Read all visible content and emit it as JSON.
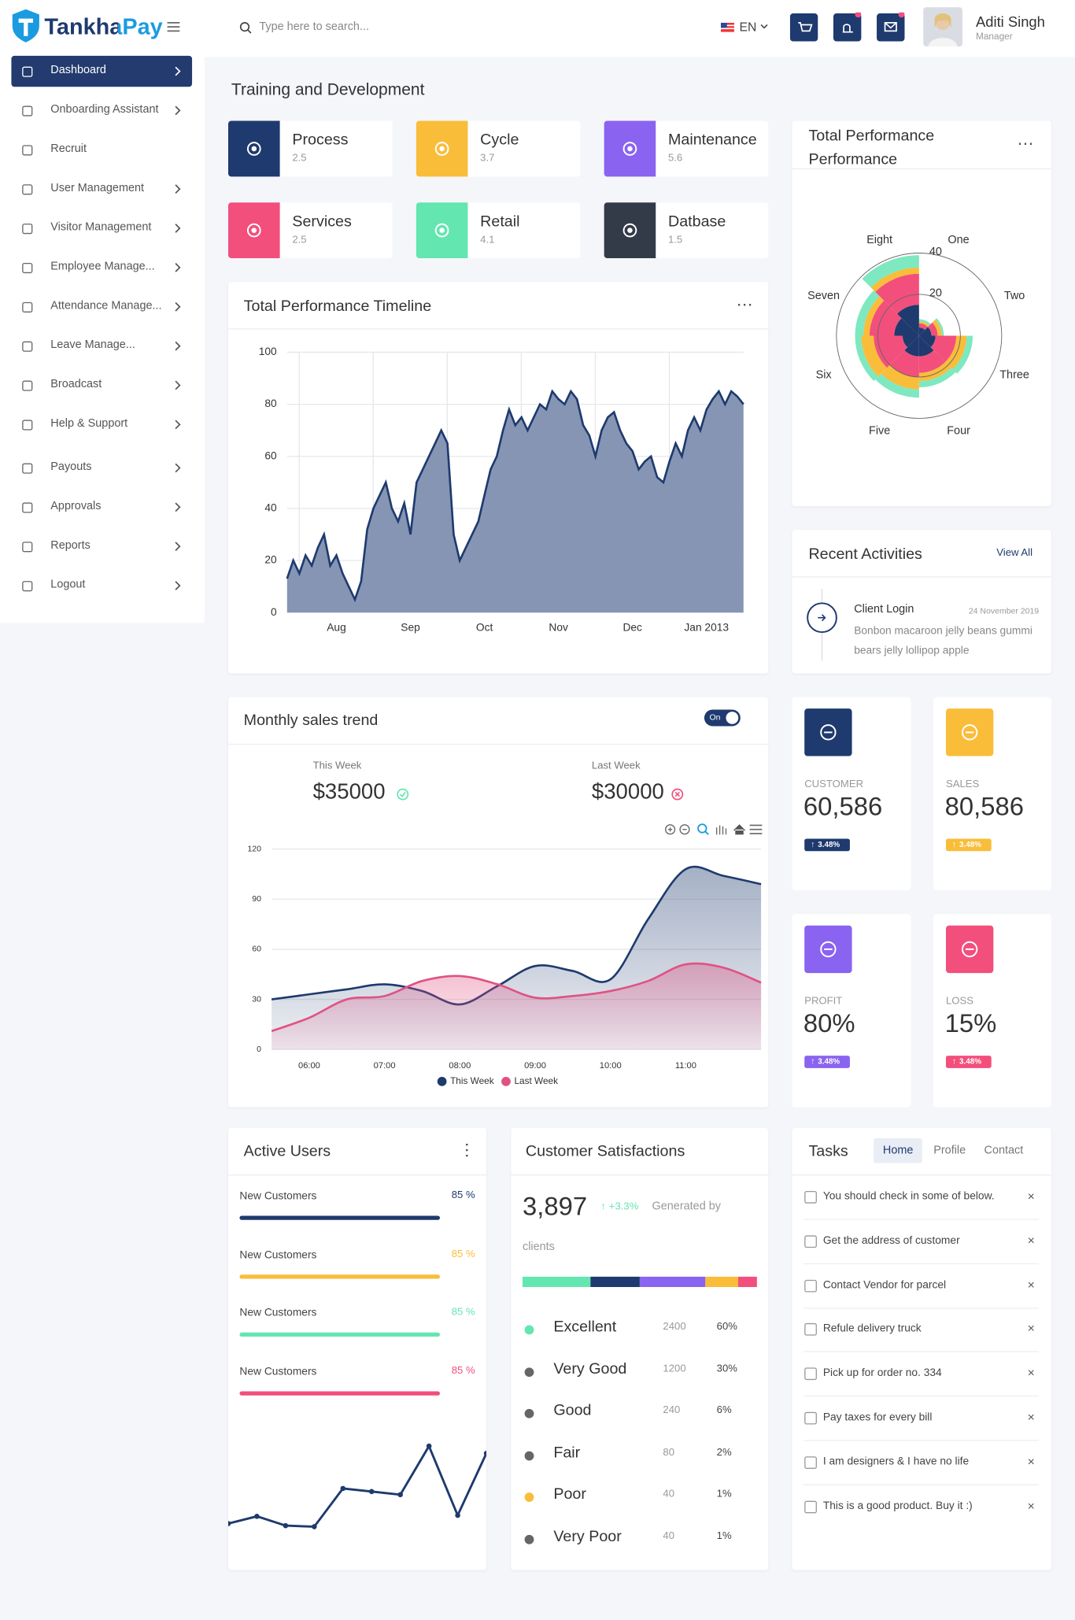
{
  "sidebar": {
    "brand": "TankhaPay",
    "menu": [
      {
        "label": "Dashboard",
        "submenu": true,
        "active": true
      },
      {
        "label": "Onboarding Assistant",
        "submenu": true,
        "active": false
      },
      {
        "label": "Recruit",
        "submenu": false,
        "active": false
      },
      {
        "label": "User Management",
        "submenu": true,
        "active": false
      },
      {
        "label": "Visitor Management",
        "submenu": true,
        "active": false
      },
      {
        "label": "Employee Manage...",
        "submenu": true,
        "active": false
      },
      {
        "label": "Attendance Manage...",
        "submenu": true,
        "active": false
      },
      {
        "label": "Leave Manage...",
        "submenu": true,
        "active": false
      },
      {
        "label": "Broadcast",
        "submenu": true,
        "active": false
      },
      {
        "label": "Help & Support",
        "submenu": true,
        "active": false
      },
      {
        "label": "Payouts",
        "submenu": true,
        "active": false
      },
      {
        "label": "Approvals",
        "submenu": true,
        "active": false
      },
      {
        "label": "Reports",
        "submenu": true,
        "active": false
      },
      {
        "label": "Logout",
        "submenu": true,
        "active": false
      }
    ]
  },
  "topbar": {
    "search_placeholder": "Type here to search...",
    "language": "EN",
    "user_name": "Aditi Singh",
    "user_role": "Manager"
  },
  "section_title": "Training and Development",
  "tiles": [
    {
      "label": "Process",
      "value": 2.5,
      "color": "#1e3a6e"
    },
    {
      "label": "Cycle",
      "value": 3.7,
      "color": "#f9bd3a"
    },
    {
      "label": "Maintenance",
      "value": 5.6,
      "color": "#8a63f0"
    },
    {
      "label": "Services",
      "value": 2.5,
      "color": "#f24f7c"
    },
    {
      "label": "Retail",
      "value": 4.1,
      "color": "#63e6b0"
    },
    {
      "label": "Datbase",
      "value": 1.5,
      "color": "#333a48"
    }
  ],
  "recent_activities": {
    "title": "Recent Activities",
    "link": "View All",
    "items": [
      {
        "title": "Client Login",
        "date": "24 November 2019",
        "text": "Bonbon macaroon jelly beans gummi bears jelly lollipop apple"
      }
    ]
  },
  "monthly_sales": {
    "toggle": "On",
    "this_week": {
      "label": "This Week",
      "amount": "$35000"
    },
    "last_week": {
      "label": "Last Week",
      "amount": "$30000"
    }
  },
  "stats": [
    {
      "label": "CUSTOMER",
      "value": "60,586",
      "change": "3.48%",
      "color": "#1e3a6e"
    },
    {
      "label": "SALES",
      "value": "80,586",
      "change": "3.48%",
      "color": "#f9bd3a"
    },
    {
      "label": "PROFIT",
      "value": "80%",
      "change": "3.48%",
      "color": "#8a63f0"
    },
    {
      "label": "LOSS",
      "value": "15%",
      "change": "3.48%",
      "color": "#f24f7c"
    }
  ],
  "active_users": {
    "title": "Active Users",
    "bars": [
      {
        "label": "New Customers",
        "value": 85,
        "value_label": "85 %",
        "color": "#1e3a6e"
      },
      {
        "label": "New Customers",
        "value": 85,
        "value_label": "85 %",
        "color": "#f9bd3a"
      },
      {
        "label": "New Customers",
        "value": 85,
        "value_label": "85 %",
        "color": "#63e6b0"
      },
      {
        "label": "New Customers",
        "value": 85,
        "value_label": "85 %",
        "color": "#f24f7c"
      }
    ]
  },
  "customer_satisfaction": {
    "title": "Customer Satisfactions",
    "total": "3,897",
    "change": "+3.3%",
    "note": "Generated by clients",
    "bar": [
      {
        "color": "#63e6b0",
        "value": 29
      },
      {
        "color": "#1e3a6e",
        "value": 21
      },
      {
        "color": "#8a63f0",
        "value": 28
      },
      {
        "color": "#f9bd3a",
        "value": 14
      },
      {
        "color": "#f24f7c",
        "value": 8
      }
    ],
    "rows": [
      {
        "label": "Excellent",
        "count": 2400,
        "percent": 60,
        "percent_label": "60%",
        "color": "#63e6b0"
      },
      {
        "label": "Very Good",
        "count": 1200,
        "percent": 30,
        "percent_label": "30%",
        "color": "#666666"
      },
      {
        "label": "Good",
        "count": 240,
        "percent": 6,
        "percent_label": "6%",
        "color": "#666666"
      },
      {
        "label": "Fair",
        "count": 80,
        "percent": 2,
        "percent_label": "2%",
        "color": "#666666"
      },
      {
        "label": "Poor",
        "count": 40,
        "percent": 1,
        "percent_label": "1%",
        "color": "#f9bd3a"
      },
      {
        "label": "Very Poor",
        "count": 40,
        "percent": 1,
        "percent_label": "1%",
        "color": "#666666"
      }
    ]
  },
  "tasks": {
    "title": "Tasks",
    "tabs": [
      "Home",
      "Profile",
      "Contact"
    ],
    "active_tab": 0,
    "items": [
      "You should check in some of below.",
      "Get the address of customer",
      "Contact Vendor for parcel",
      "Refule delivery truck",
      "Pick up for order no. 334",
      "Pay taxes for every bill",
      "I am designers & I have no life",
      "This is a good product. Buy it :)"
    ]
  },
  "chart_data": [
    {
      "type": "area",
      "title": "Total Performance Timeline",
      "color": "#1e3a6e",
      "fill": "#8595b3",
      "categories": [
        null,
        null,
        null,
        null,
        null,
        null,
        null,
        null,
        "Aug",
        null,
        null,
        null,
        null,
        null,
        null,
        null,
        null,
        null,
        null,
        null,
        "Sep",
        null,
        null,
        null,
        null,
        null,
        null,
        null,
        null,
        null,
        null,
        null,
        "Oct",
        null,
        null,
        null,
        null,
        null,
        null,
        null,
        null,
        null,
        null,
        null,
        "Nov",
        null,
        null,
        null,
        null,
        null,
        null,
        null,
        null,
        null,
        null,
        null,
        "Dec",
        null,
        null,
        null,
        null,
        null,
        null,
        null,
        null,
        null,
        null,
        null,
        "Jan 2013",
        null,
        null,
        null,
        null,
        null,
        null
      ],
      "values": [
        13,
        20,
        15,
        22,
        18,
        25,
        30,
        18,
        22,
        15,
        10,
        5,
        12,
        32,
        40,
        45,
        50,
        40,
        35,
        42,
        30,
        50,
        55,
        60,
        65,
        70,
        65,
        30,
        20,
        25,
        30,
        35,
        45,
        55,
        60,
        70,
        78,
        72,
        75,
        70,
        75,
        80,
        78,
        85,
        82,
        80,
        85,
        82,
        72,
        68,
        60,
        70,
        75,
        77,
        70,
        65,
        62,
        55,
        58,
        60,
        52,
        50,
        58,
        65,
        60,
        70,
        75,
        70,
        78,
        82,
        85,
        80,
        85,
        83,
        80
      ],
      "ylim": [
        0,
        100
      ],
      "yticks": [
        0,
        20,
        40,
        60,
        80,
        100
      ],
      "grid": true
    },
    {
      "type": "smooth-area",
      "title": "Monthly sales trend",
      "categories": [
        null,
        "06:00",
        null,
        "07:00",
        null,
        "08:00",
        null,
        "09:00",
        null,
        "10:00",
        null,
        "11:00",
        null,
        null
      ],
      "series": [
        {
          "name": "This Week",
          "color": "#1e3a6e",
          "values": [
            30,
            33,
            36,
            39,
            35,
            27,
            38,
            50,
            47,
            42,
            78,
            108,
            104,
            99
          ]
        },
        {
          "name": "Last Week",
          "color": "#e05283",
          "values": [
            11,
            19,
            30,
            32,
            41,
            44,
            39,
            31,
            32,
            35,
            41,
            51,
            49,
            40
          ]
        }
      ],
      "ylim": [
        0,
        120
      ],
      "yticks": [
        0,
        30,
        60,
        90,
        120
      ],
      "grid": true,
      "legend": "bottom"
    },
    {
      "type": "polar",
      "title": "Total Performance Performance",
      "categories": [
        "One",
        "Two",
        "Three",
        "Four",
        "Five",
        "Six",
        "Seven",
        "Eight"
      ],
      "series": [
        {
          "color": "#1e3a6e",
          "values": [
            4,
            6,
            8,
            10,
            10,
            8,
            12,
            15
          ]
        },
        {
          "color": "#f24f7c",
          "values": [
            2,
            3,
            10,
            8,
            10,
            14,
            12,
            15
          ]
        },
        {
          "color": "#f9bd3a",
          "values": [
            1,
            2,
            5,
            4,
            6,
            6,
            3,
            3
          ]
        },
        {
          "color": "#7ee8c0",
          "values": [
            1,
            1,
            3,
            3,
            4,
            3,
            4,
            6
          ]
        }
      ],
      "rlim": [
        0,
        40
      ],
      "rticks": [
        20,
        40
      ],
      "grid": true
    },
    {
      "type": "sparkline",
      "color": "#1e3a6e",
      "values": [
        15,
        22,
        13,
        12,
        49,
        46,
        43,
        90,
        23,
        83
      ]
    }
  ]
}
